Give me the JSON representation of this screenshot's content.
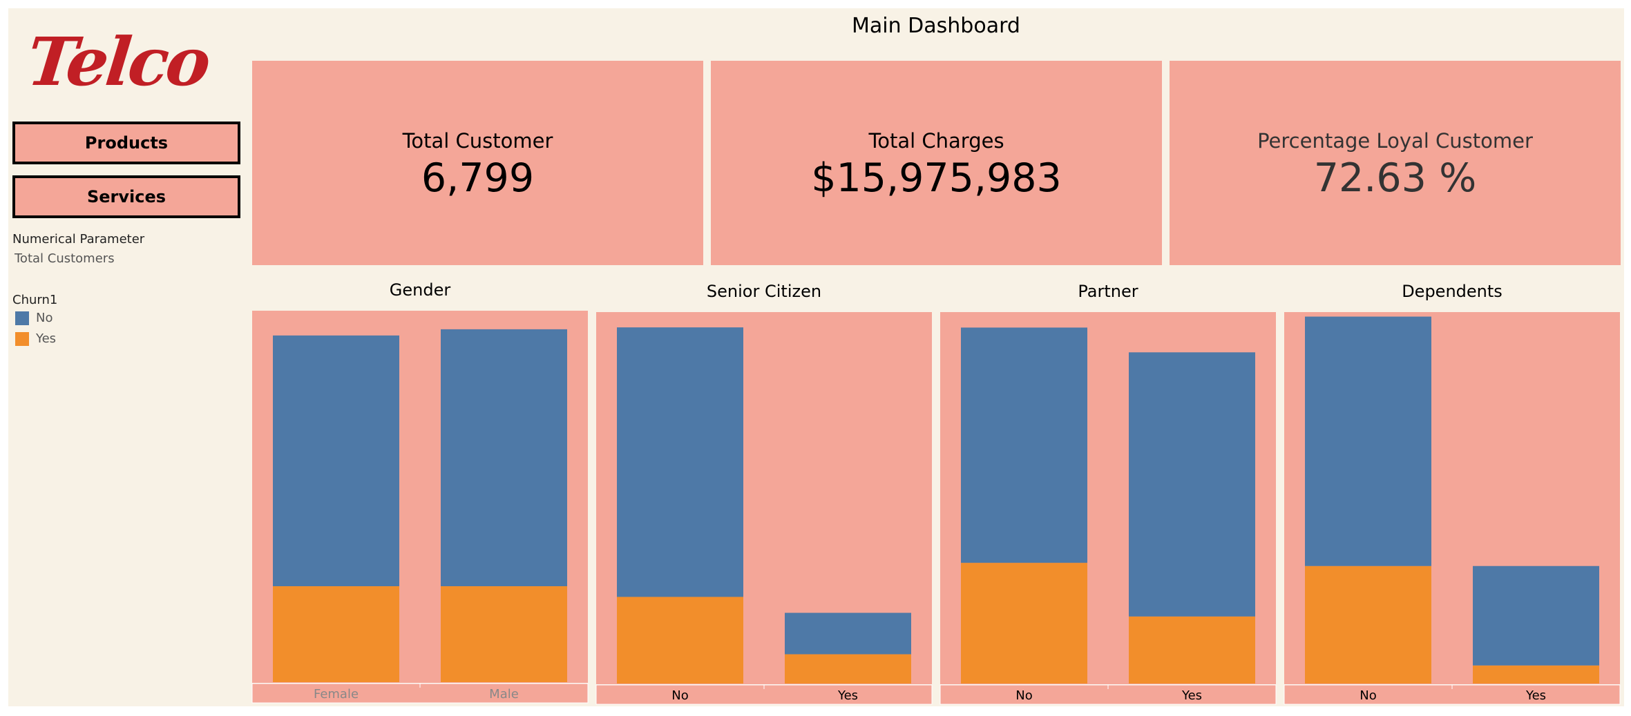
{
  "logo_text": "Telco",
  "nav": {
    "products_label": "Products",
    "services_label": "Services"
  },
  "parameter": {
    "label": "Numerical Parameter",
    "value": "Total Customers"
  },
  "legend": {
    "title": "Churn1",
    "items": [
      {
        "label": "No",
        "color": "#4e79a7"
      },
      {
        "label": "Yes",
        "color": "#f28e2b"
      }
    ]
  },
  "dashboard_title": "Main Dashboard",
  "kpis": [
    {
      "label": "Total Customer",
      "value": "6,799"
    },
    {
      "label": "Total Charges",
      "value": "$15,975,983"
    },
    {
      "label": "Percentage Loyal Customer",
      "value": "72.63 %"
    }
  ],
  "colors": {
    "panel": "#f4a698",
    "background": "#f8f2e6",
    "no": "#4e79a7",
    "yes": "#f28e2b",
    "logo": "#c11f25"
  },
  "chart_data": [
    {
      "type": "bar",
      "title": "Gender",
      "stacked": true,
      "categories": [
        "Female",
        "Male"
      ],
      "tick_label_color": "#888888",
      "ylim": [
        0,
        3600
      ],
      "series": [
        {
          "name": "No",
          "values": [
            2430,
            2490
          ]
        },
        {
          "name": "Yes",
          "values": [
            930,
            930
          ]
        }
      ]
    },
    {
      "type": "bar",
      "title": "Senior Citizen",
      "stacked": true,
      "categories": [
        "No",
        "Yes"
      ],
      "tick_label_color": "#000000",
      "ylim": [
        0,
        5830
      ],
      "series": [
        {
          "name": "No",
          "values": [
            4230,
            650
          ]
        },
        {
          "name": "Yes",
          "values": [
            1360,
            460
          ]
        }
      ]
    },
    {
      "type": "bar",
      "title": "Partner",
      "stacked": true,
      "categories": [
        "No",
        "Yes"
      ],
      "tick_label_color": "#000000",
      "ylim": [
        0,
        3600
      ],
      "series": [
        {
          "name": "No",
          "values": [
            2280,
            2560
          ]
        },
        {
          "name": "Yes",
          "values": [
            1170,
            650
          ]
        }
      ]
    },
    {
      "type": "bar",
      "title": "Dependents",
      "stacked": true,
      "categories": [
        "No",
        "Yes"
      ],
      "tick_label_color": "#000000",
      "ylim": [
        0,
        4930
      ],
      "series": [
        {
          "name": "No",
          "values": [
            3310,
            1320
          ]
        },
        {
          "name": "Yes",
          "values": [
            1560,
            240
          ]
        }
      ]
    }
  ]
}
